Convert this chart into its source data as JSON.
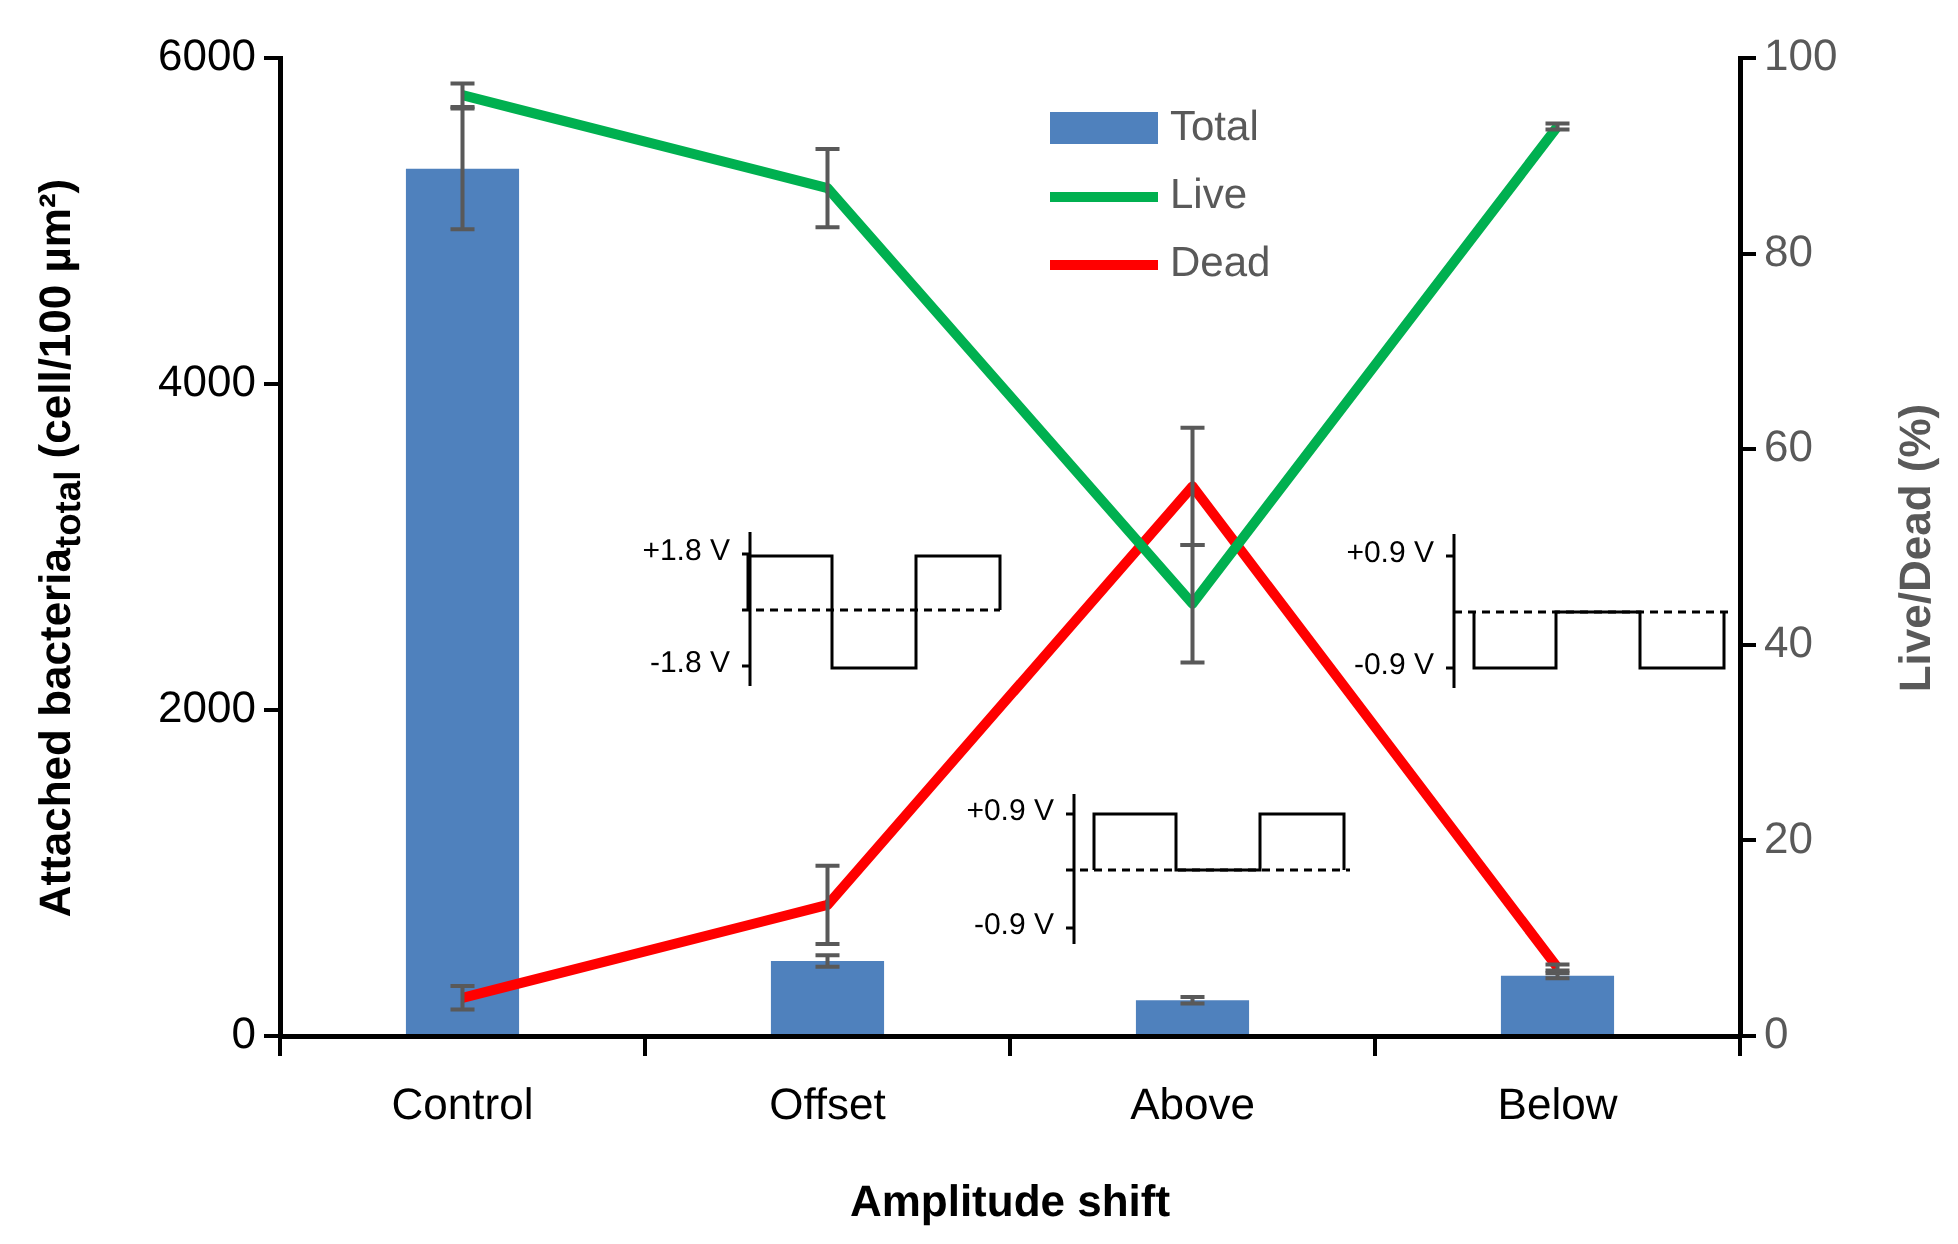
{
  "chart_data": {
    "type": "bar",
    "xlabel": "Amplitude shift",
    "ylabel": "Attached bacteria$_{total}$ (cell/100 µm²)",
    "y2label": "Live/Dead (%)",
    "categories": [
      "Control",
      "Offset",
      "Above",
      "Below"
    ],
    "series": [
      {
        "name": "Total",
        "color": "#4f81bd",
        "values": [
          5320,
          460,
          220,
          370
        ],
        "errors": [
          370,
          35,
          20,
          15
        ]
      },
      {
        "name": "Live",
        "type": "line",
        "axis": "y2",
        "color": "#00b050",
        "values": [
          96.2,
          86.7,
          44.2,
          93.0
        ],
        "errors": [
          1.2,
          4,
          6,
          0.3
        ]
      },
      {
        "name": "Dead",
        "type": "line",
        "axis": "y2",
        "color": "#ff0000",
        "values": [
          3.9,
          13.4,
          56.2,
          7.0
        ],
        "errors": [
          1.2,
          4,
          6,
          0.3
        ]
      }
    ],
    "ylim": [
      0,
      6000
    ],
    "yticks": [
      0,
      2000,
      4000,
      6000
    ],
    "y2lim": [
      0,
      100
    ],
    "y2ticks": [
      0,
      20,
      40,
      60,
      80,
      100
    ],
    "grid": false,
    "legend": "top",
    "marker": "none",
    "annotations": [
      "+1.8 V",
      "-1.8 V",
      "+0.9 V",
      "-0.9 V",
      "+0.9 V",
      "-0.9 V"
    ]
  }
}
